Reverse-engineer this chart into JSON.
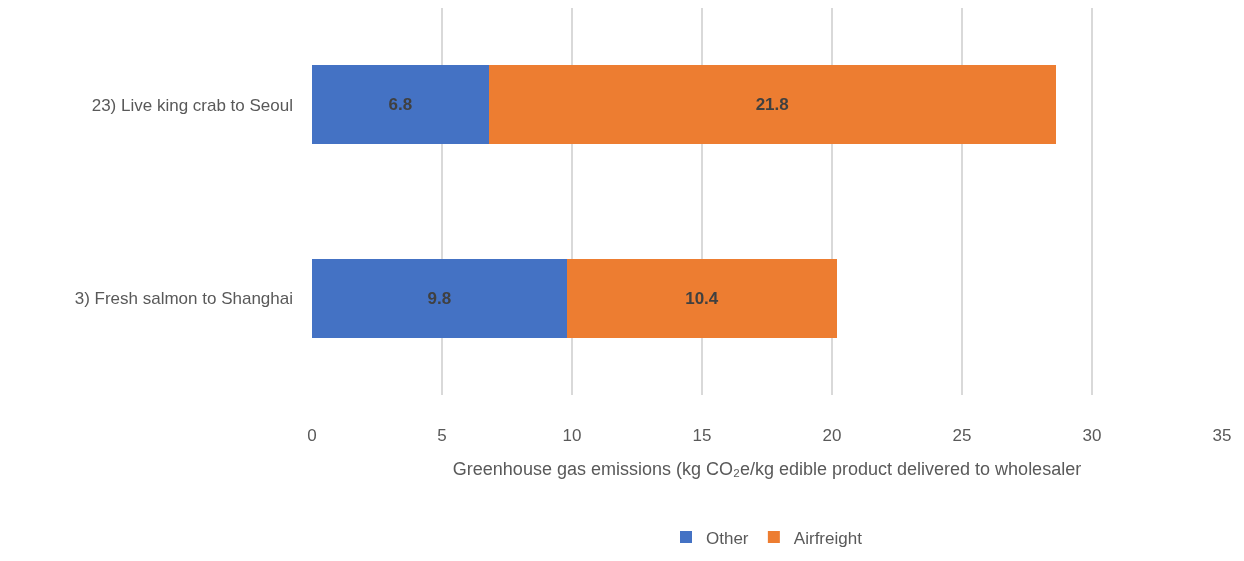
{
  "chart_data": {
    "type": "bar",
    "orientation": "horizontal",
    "stacked": true,
    "xlabel": "Greenhouse gas emissions (kg CO₂e/kg edible product delivered to wholesaler",
    "categories": [
      "23) Live king crab to Seoul",
      "3) Fresh salmon to Shanghai"
    ],
    "series": [
      {
        "name": "Other",
        "color": "#4472c4",
        "values": [
          6.8,
          9.8
        ]
      },
      {
        "name": "Airfreight",
        "color": "#ed7d31",
        "values": [
          21.8,
          10.4
        ]
      }
    ],
    "xlim": [
      0,
      35
    ],
    "xticks": [
      0,
      5,
      10,
      15,
      20,
      25,
      30,
      35
    ],
    "grid": "x",
    "legend": "bottom",
    "data_labels": true
  }
}
